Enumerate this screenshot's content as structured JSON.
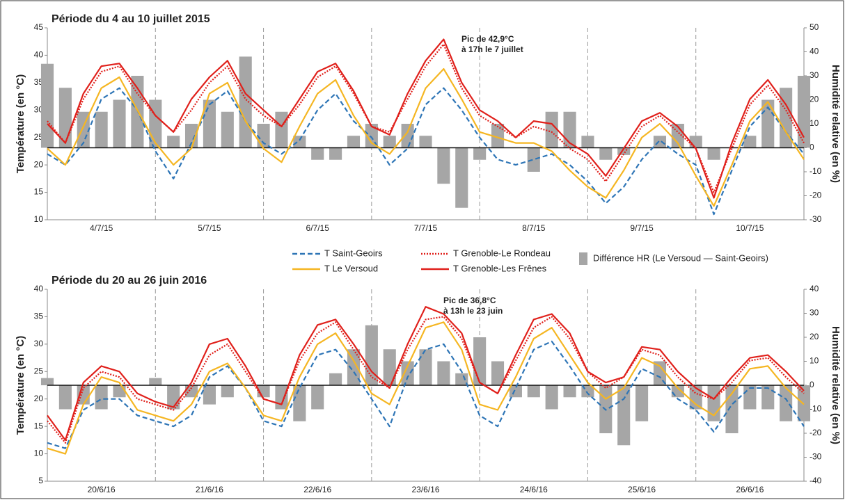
{
  "chart_data": [
    {
      "type": "line",
      "title": "Période du 4 au 10 juillet 2015",
      "ylabel": "Température (en °C)",
      "y2label": "Humidité relative (en %)",
      "annotation": [
        "Pic de 42,9°C",
        "à 17h le 7 juillet"
      ],
      "xlim": [
        0,
        168
      ],
      "xticks": [
        {
          "value": 12,
          "label": "4/7/15"
        },
        {
          "value": 36,
          "label": "5/7/15"
        },
        {
          "value": 60,
          "label": "6/7/15"
        },
        {
          "value": 84,
          "label": "7/7/15"
        },
        {
          "value": 108,
          "label": "8/7/15"
        },
        {
          "value": 132,
          "label": "9/7/15"
        },
        {
          "value": 156,
          "label": "10/7/15"
        }
      ],
      "ylim": [
        10,
        45
      ],
      "yticks": [
        10,
        15,
        20,
        25,
        30,
        35,
        40,
        45
      ],
      "y2lim": [
        -30,
        50
      ],
      "y2ticks": [
        -30,
        -20,
        -10,
        0,
        10,
        20,
        30,
        40,
        50
      ],
      "x": [
        0,
        4,
        8,
        12,
        16,
        20,
        24,
        28,
        32,
        36,
        40,
        44,
        48,
        52,
        56,
        60,
        64,
        68,
        72,
        76,
        80,
        84,
        88,
        92,
        96,
        100,
        104,
        108,
        112,
        116,
        120,
        124,
        128,
        132,
        136,
        140,
        144,
        148,
        152,
        156,
        160,
        164,
        168
      ],
      "series": [
        {
          "name": "T Saint-Geoirs",
          "type": "line",
          "dash": "dashed",
          "color": "#2e75b6",
          "values": [
            22,
            20,
            24,
            32,
            34,
            30,
            22.5,
            17.5,
            24,
            31,
            33.5,
            28,
            24,
            22,
            24.5,
            30,
            33,
            28,
            25,
            20,
            23,
            31,
            34,
            30,
            25,
            21,
            20,
            21,
            22,
            20,
            17,
            13,
            16,
            21,
            24.5,
            22,
            20,
            11,
            19,
            27,
            30.5,
            26,
            22
          ]
        },
        {
          "name": "T Le Versoud",
          "type": "line",
          "dash": "solid",
          "color": "#f5b622",
          "values": [
            23,
            20,
            27,
            34,
            36,
            30,
            24,
            20,
            23,
            33,
            35,
            28,
            23,
            20.5,
            27,
            33,
            35.5,
            29,
            24,
            22,
            26,
            34,
            37.5,
            32,
            26,
            25,
            24,
            24,
            22.5,
            19,
            16,
            14,
            19,
            25,
            27.5,
            24,
            18,
            12.5,
            20,
            28,
            31.5,
            26,
            21
          ]
        },
        {
          "name": "T Grenoble-Le Rondeau",
          "type": "line",
          "dash": "dotted",
          "color": "#e0201b",
          "values": [
            28,
            24,
            32,
            37,
            38,
            33,
            29,
            26,
            30,
            35,
            38,
            32,
            29,
            27,
            31,
            36,
            38,
            33,
            27,
            26,
            32,
            38,
            42,
            34,
            29,
            27,
            25,
            27,
            26,
            23,
            21,
            17,
            22,
            27,
            29,
            26,
            23,
            15,
            23,
            31,
            34.5,
            30,
            24
          ]
        },
        {
          "name": "T Grenoble-Les Frênes",
          "type": "line",
          "dash": "solid",
          "color": "#e0201b",
          "values": [
            27.5,
            24,
            33,
            38,
            38.5,
            34,
            29,
            26,
            32,
            36,
            39,
            33,
            30,
            27,
            32,
            37,
            38.5,
            33.5,
            27,
            25.5,
            33,
            39,
            42.9,
            35,
            30,
            28,
            25,
            28,
            27.5,
            24,
            22,
            18,
            23,
            28,
            29.5,
            27,
            23,
            14,
            24,
            32,
            35.5,
            31,
            25
          ]
        },
        {
          "name": "Différence HR (Le Versoud — Saint-Geoirs)",
          "type": "bar",
          "axis": "y2",
          "color": "#a6a6a6",
          "values": [
            35,
            25,
            15,
            15,
            20,
            30,
            20,
            5,
            10,
            20,
            15,
            38,
            10,
            15,
            5,
            -5,
            -5,
            5,
            10,
            5,
            10,
            5,
            -15,
            -25,
            -5,
            10,
            0,
            -10,
            15,
            15,
            5,
            -5,
            -3,
            0,
            5,
            10,
            5,
            -5,
            0,
            5,
            20,
            25,
            30
          ]
        }
      ]
    },
    {
      "type": "line",
      "title": "Période du 20 au 26 juin 2016",
      "ylabel": "Température (en °C)",
      "y2label": "Humidité relative (en %)",
      "annotation": [
        "Pic de 36,8°C",
        "à 13h le 23 juin"
      ],
      "xlim": [
        0,
        168
      ],
      "xticks": [
        {
          "value": 12,
          "label": "20/6/16"
        },
        {
          "value": 36,
          "label": "21/6/16"
        },
        {
          "value": 60,
          "label": "22/6/16"
        },
        {
          "value": 84,
          "label": "23/6/16"
        },
        {
          "value": 108,
          "label": "24/6/16"
        },
        {
          "value": 132,
          "label": "25/6/16"
        },
        {
          "value": 156,
          "label": "26/6/16"
        }
      ],
      "ylim": [
        5,
        40
      ],
      "yticks": [
        5,
        10,
        15,
        20,
        25,
        30,
        35,
        40
      ],
      "y2lim": [
        -40,
        40
      ],
      "y2ticks": [
        -40,
        -30,
        -20,
        -10,
        0,
        10,
        20,
        30,
        40
      ],
      "x": [
        0,
        4,
        8,
        12,
        16,
        20,
        24,
        28,
        32,
        36,
        40,
        44,
        48,
        52,
        56,
        60,
        64,
        68,
        72,
        76,
        80,
        84,
        88,
        92,
        96,
        100,
        104,
        108,
        112,
        116,
        120,
        124,
        128,
        132,
        136,
        140,
        144,
        148,
        152,
        156,
        160,
        164,
        168
      ],
      "series": [
        {
          "type": "line",
          "dash": "dashed",
          "color": "#2e75b6",
          "values": [
            12,
            11,
            18,
            20,
            20,
            17,
            16,
            15,
            17,
            24,
            26,
            22,
            16,
            15,
            22,
            28,
            29,
            25,
            20,
            15,
            24,
            29,
            30,
            25,
            17,
            15,
            22,
            29,
            30.5,
            26,
            21,
            18,
            20,
            25.5,
            24,
            20,
            18,
            14,
            19,
            22,
            22,
            20,
            15
          ]
        },
        {
          "type": "line",
          "dash": "solid",
          "color": "#f5b622",
          "values": [
            11,
            10,
            19,
            24,
            23,
            18,
            17,
            16,
            19,
            25,
            26.5,
            22,
            17,
            16,
            24,
            30,
            32,
            27,
            21,
            19,
            26,
            33,
            34,
            29,
            19,
            18,
            24,
            31,
            33,
            28,
            23,
            20,
            22,
            27.5,
            26,
            22,
            19,
            17,
            21,
            25.5,
            26,
            22,
            19
          ]
        },
        {
          "type": "line",
          "dash": "dotted",
          "color": "#e0201b",
          "values": [
            16,
            12,
            22,
            25,
            24,
            20,
            19,
            18,
            22,
            28,
            30,
            25,
            20,
            19,
            27,
            32,
            34,
            29,
            24,
            22,
            29,
            34.5,
            35,
            31,
            23,
            21,
            27,
            33,
            35,
            31,
            25,
            22,
            24,
            29,
            28,
            24,
            21,
            20,
            23,
            27,
            27.5,
            24,
            21
          ]
        },
        {
          "type": "line",
          "dash": "solid",
          "color": "#e0201b",
          "values": [
            17,
            12.5,
            23,
            26,
            25,
            21,
            19.5,
            18.5,
            23,
            30,
            31,
            26,
            20,
            19,
            28,
            33.5,
            34.5,
            30,
            25,
            22,
            30,
            36.8,
            35.5,
            32,
            23,
            21,
            28,
            34.5,
            35.5,
            32,
            25,
            23,
            24,
            29.5,
            29,
            25,
            22,
            20,
            24,
            27.5,
            28,
            25,
            21.5
          ]
        },
        {
          "type": "bar",
          "axis": "y2",
          "color": "#a6a6a6",
          "values": [
            3,
            -10,
            -8,
            -10,
            -5,
            0,
            3,
            -10,
            -5,
            -8,
            -5,
            0,
            -5,
            -10,
            -15,
            -10,
            5,
            15,
            25,
            15,
            10,
            15,
            10,
            5,
            20,
            10,
            -5,
            -5,
            -10,
            -5,
            -5,
            -20,
            -25,
            -15,
            10,
            -5,
            -10,
            -15,
            -20,
            -10,
            -10,
            -15,
            -15
          ]
        }
      ]
    }
  ]
}
